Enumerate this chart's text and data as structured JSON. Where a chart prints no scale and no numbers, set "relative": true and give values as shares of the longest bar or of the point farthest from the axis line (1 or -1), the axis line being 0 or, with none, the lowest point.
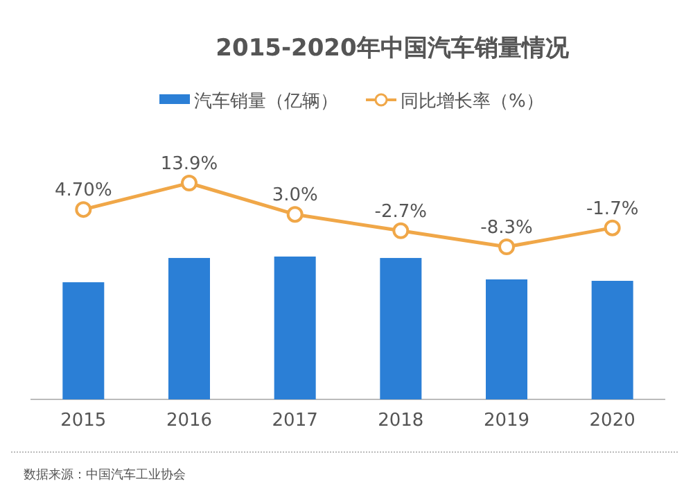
{
  "chart_data": [
    {
      "type": "line",
      "title": "2015-2020年中国汽车销量情况",
      "legend": "top",
      "marker": "circle",
      "data_labels": true,
      "series": [
        {
          "name": "同比增长率（%）",
          "color": "#f0a748",
          "values": [
            4.7,
            13.9,
            3.0,
            -2.7,
            -8.3,
            -1.7
          ],
          "value_labels": [
            "4.70%",
            "13.9%",
            "3.0%",
            "-2.7%",
            "-8.3%",
            "-1.7%"
          ]
        }
      ]
    },
    {
      "type": "bar",
      "categories": [
        "2015",
        "2016",
        "2017",
        "2018",
        "2019",
        "2020"
      ],
      "relative": true,
      "legend": "top",
      "series": [
        {
          "name": "汽车销量（亿辆）",
          "color": "#2b7fd6",
          "values": [
            0.82,
            0.99,
            1,
            0.99,
            0.84,
            0.83
          ]
        }
      ],
      "annotations": [
        "数据来源：中国汽车工业协会"
      ]
    }
  ]
}
